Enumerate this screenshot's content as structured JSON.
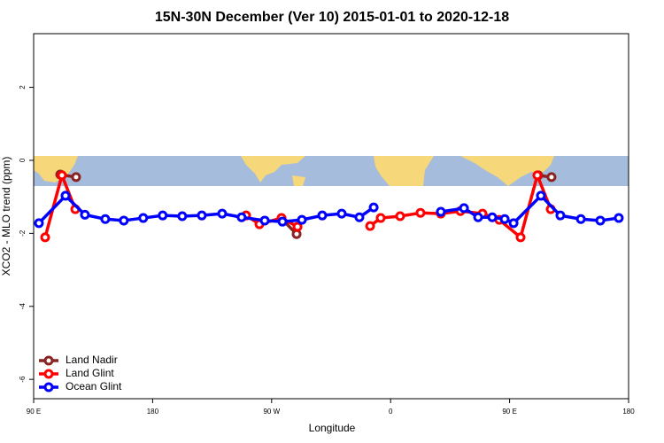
{
  "chart_data": {
    "type": "line",
    "title": "15N-30N December (Ver 10)   2015-01-01 to 2020-12-18",
    "xlabel": "Longitude",
    "ylabel": "XCO2 - MLO trend (ppm)",
    "xlim": [
      90,
      540
    ],
    "ylim": [
      -6.53,
      3.47
    ],
    "xticks": [
      {
        "value": 90,
        "label": "90 E"
      },
      180,
      {
        "value": 270,
        "label": "90 W"
      },
      {
        "value": 360,
        "label": "0"
      },
      {
        "value": 450,
        "label": "90 E"
      },
      {
        "value": 540,
        "label": "180"
      }
    ],
    "yticks": [
      -6,
      -4,
      -2,
      0,
      2
    ],
    "legend": "bottom-left",
    "series": [
      {
        "name": "Land Nadir",
        "color": "#8b2323",
        "x": [
          110.1,
          122.1,
          null,
          277.5,
          288.9,
          null,
          471.7,
          481.7
        ],
        "values": [
          -0.39,
          -0.46,
          null,
          -1.6,
          -2.02,
          null,
          -0.41,
          -0.46
        ]
      },
      {
        "name": "Land Glint",
        "color": "#ff0000",
        "x": [
          98.7,
          111.4,
          121.5,
          null,
          250.7,
          260.8,
          277.5,
          289.6,
          null,
          344.5,
          352.5,
          367.2,
          382.6,
          398.0,
          412.8,
          429.5,
          442.2,
          458.3,
          471.0,
          481.1
        ],
        "values": [
          -2.11,
          -0.41,
          -1.34,
          null,
          -1.51,
          -1.75,
          -1.58,
          -1.82,
          null,
          -1.8,
          -1.58,
          -1.53,
          -1.44,
          -1.46,
          -1.39,
          -1.46,
          -1.63,
          -2.11,
          -0.41,
          -1.34
        ]
      },
      {
        "name": "Ocean Glint",
        "color": "#0000ff",
        "x": [
          94.0,
          114.1,
          128.8,
          144.2,
          158.2,
          172.9,
          187.6,
          202.4,
          217.2,
          232.6,
          247.3,
          264.8,
          278.2,
          292.9,
          308.3,
          323.0,
          336.4,
          347.2,
          null,
          398.0,
          415.5,
          426.2,
          436.9,
          446.3,
          453.0,
          473.7,
          488.4,
          503.9,
          518.6,
          532.6
        ],
        "values": [
          -1.72,
          -0.97,
          -1.49,
          -1.61,
          -1.65,
          -1.58,
          -1.51,
          -1.53,
          -1.51,
          -1.46,
          -1.56,
          -1.65,
          -1.68,
          -1.63,
          -1.51,
          -1.46,
          -1.56,
          -1.29,
          null,
          -1.41,
          -1.31,
          -1.56,
          -1.56,
          -1.61,
          -1.72,
          -0.97,
          -1.51,
          -1.61,
          -1.65,
          -1.58
        ]
      }
    ]
  }
}
